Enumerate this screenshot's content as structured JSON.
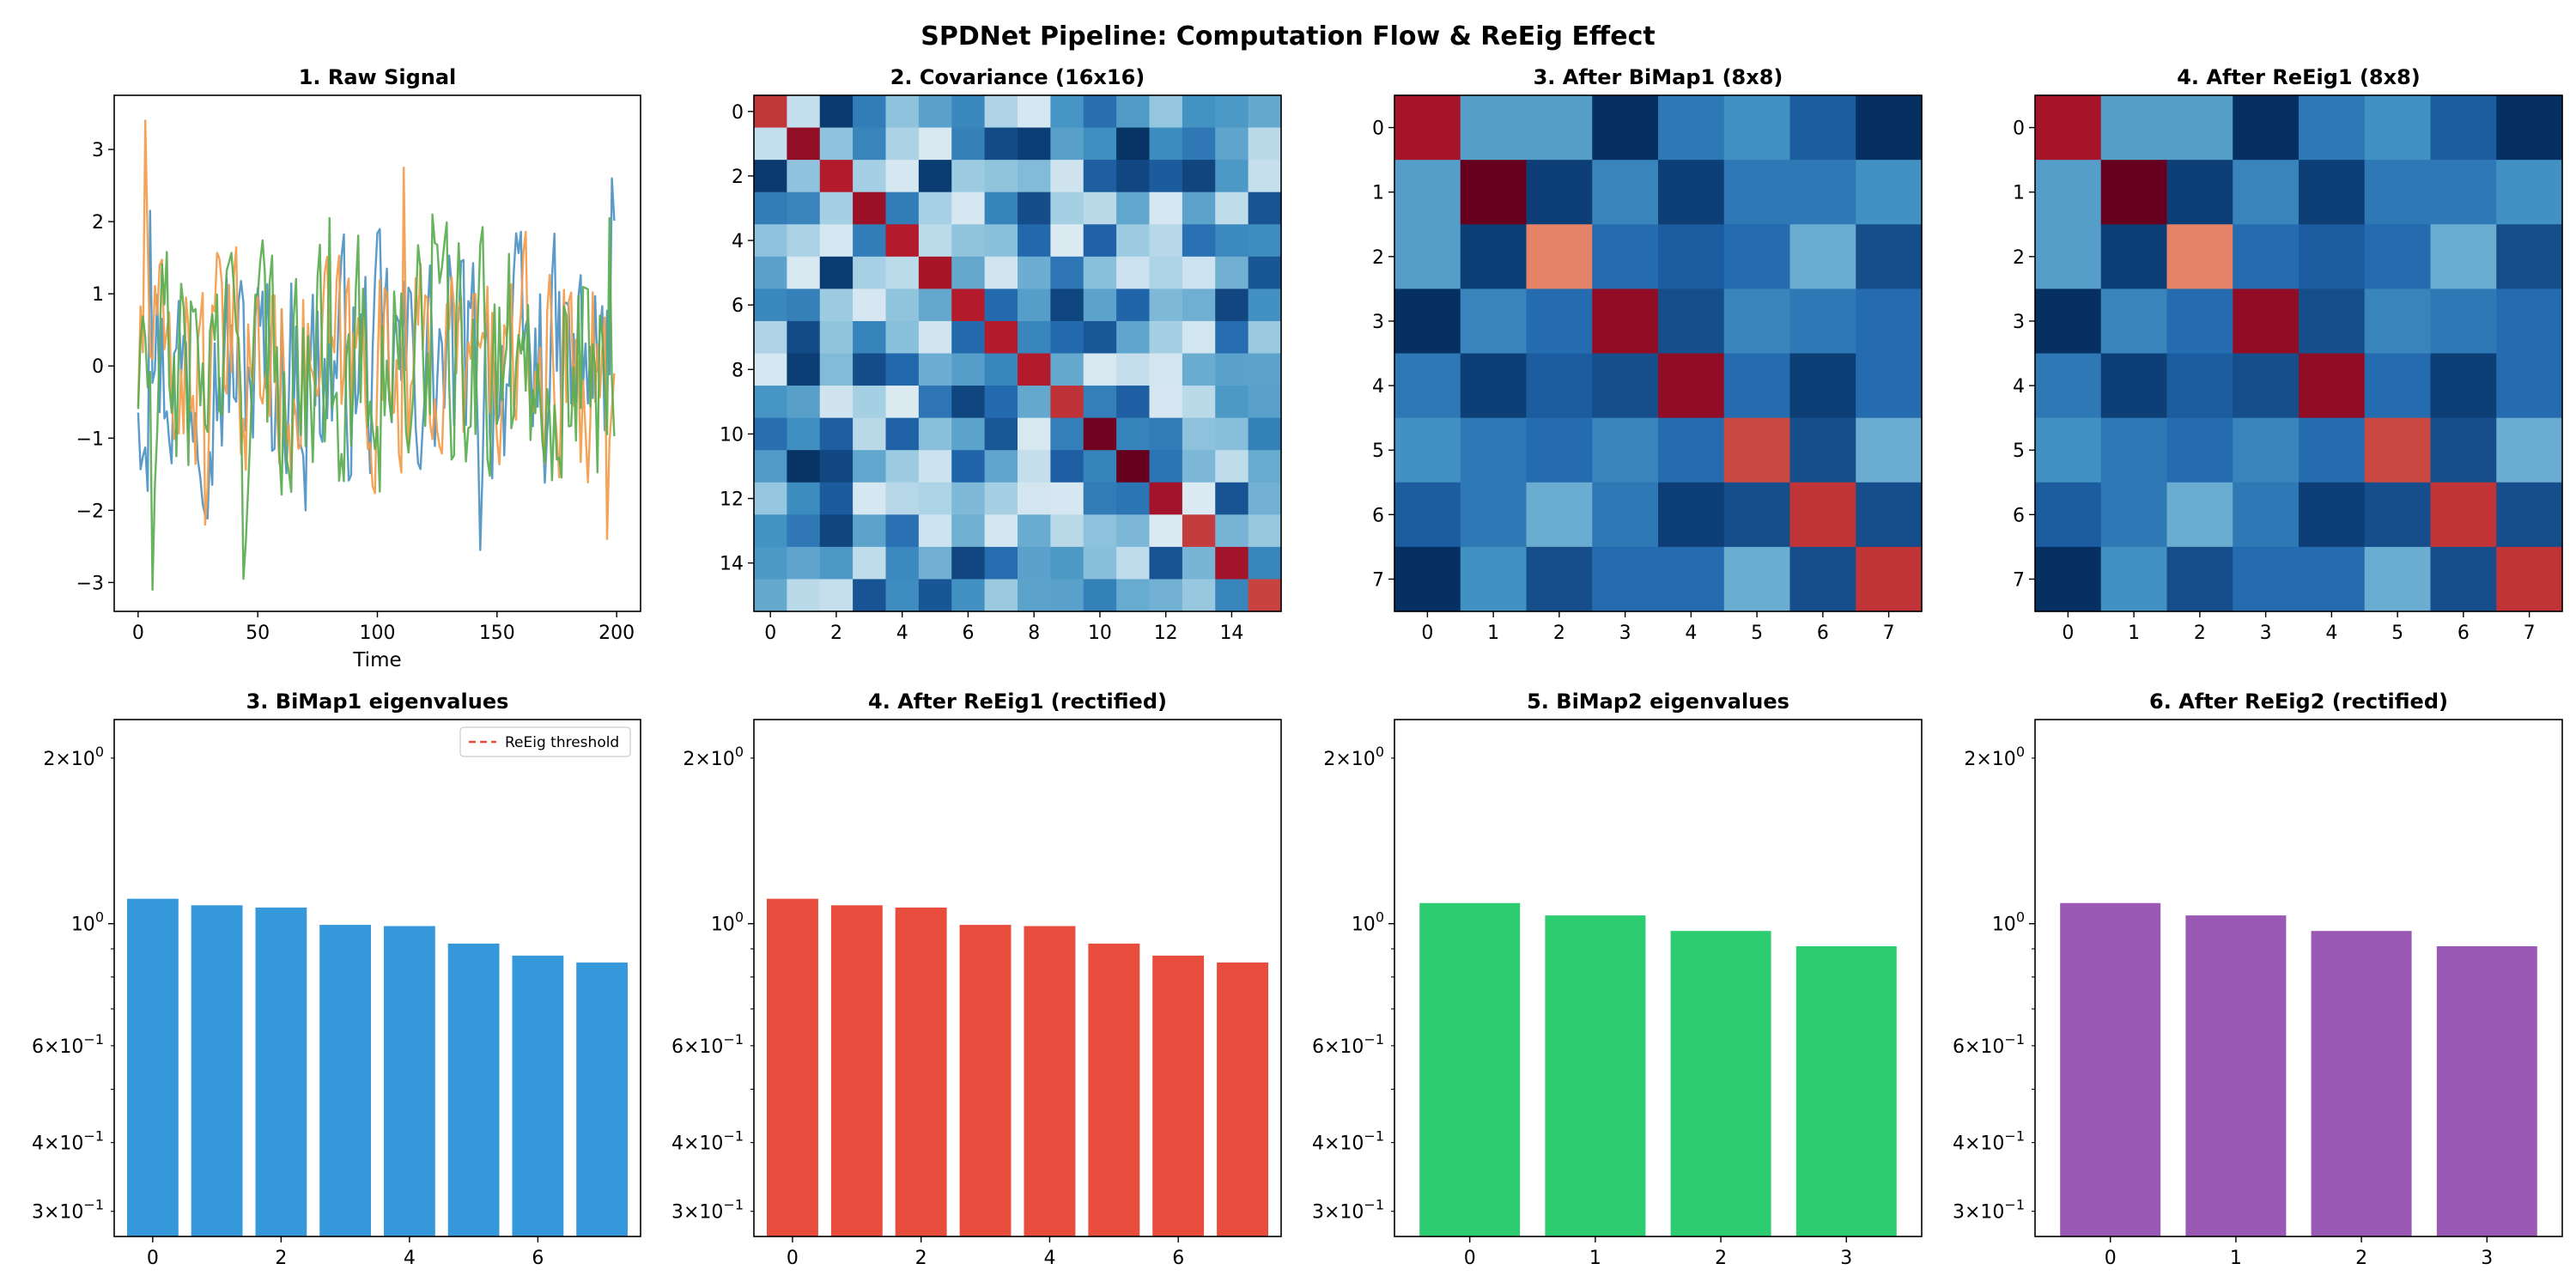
{
  "figure": {
    "title": "SPDNet Pipeline: Computation Flow & ReEig Effect"
  },
  "chart_data": [
    {
      "type": "line",
      "title": "1. Raw Signal",
      "xlabel": "Time",
      "ylabel": "",
      "xlim": [
        -10,
        210
      ],
      "ylim": [
        -3.4,
        3.75
      ],
      "xticks": [
        0,
        50,
        100,
        150,
        200
      ],
      "yticks": [
        -3,
        -2,
        -1,
        0,
        1,
        2,
        3
      ],
      "x_length": 200,
      "series": [
        {
          "color": "#4c92c3",
          "amplitude": 0.92,
          "extremes": [
            [
              5,
              2.15
            ],
            [
              70,
              -2.0
            ],
            [
              143,
              -2.55
            ],
            [
              198,
              2.6
            ]
          ]
        },
        {
          "color": "#f39c4b",
          "amplitude": 0.85,
          "extremes": [
            [
              3,
              3.4
            ],
            [
              28,
              -2.2
            ],
            [
              111,
              2.75
            ],
            [
              196,
              -2.4
            ]
          ]
        },
        {
          "color": "#5aad50",
          "amplitude": 0.95,
          "extremes": [
            [
              6,
              -3.1
            ],
            [
              44,
              -2.95
            ],
            [
              80,
              2.05
            ],
            [
              123,
              2.1
            ],
            [
              197,
              2.05
            ]
          ]
        }
      ]
    },
    {
      "type": "heatmap",
      "title": "2. Covariance (16x16)",
      "colormap": "RdBu_r",
      "vmin": -0.45,
      "vmax": 1.3,
      "ticks": [
        0,
        2,
        4,
        6,
        8,
        10,
        12,
        14
      ],
      "size": 16,
      "diagonal": [
        1.05,
        1.2,
        1.12,
        1.18,
        1.12,
        1.15,
        1.12,
        1.12,
        1.12,
        1.06,
        1.28,
        1.3,
        1.16,
        1.04,
        1.16,
        1.02
      ],
      "off_diagonal_range": [
        -0.45,
        0.3
      ]
    },
    {
      "type": "heatmap",
      "title": "3. After BiMap1 (8x8)",
      "colormap": "RdBu_r",
      "ticks": [
        0,
        1,
        2,
        3,
        4,
        5,
        6,
        7
      ],
      "z": [
        [
          1.15,
          -0.1,
          -0.1,
          -0.5,
          -0.25,
          -0.15,
          -0.35,
          -0.5
        ],
        [
          -0.1,
          1.3,
          -0.45,
          -0.2,
          -0.45,
          -0.25,
          -0.25,
          -0.15
        ],
        [
          -0.1,
          -0.45,
          0.85,
          -0.3,
          -0.35,
          -0.3,
          -0.05,
          -0.4
        ],
        [
          -0.5,
          -0.2,
          -0.3,
          1.2,
          -0.4,
          -0.2,
          -0.25,
          -0.3
        ],
        [
          -0.25,
          -0.45,
          -0.35,
          -0.4,
          1.2,
          -0.3,
          -0.45,
          -0.3
        ],
        [
          -0.15,
          -0.25,
          -0.3,
          -0.2,
          -0.3,
          1.0,
          -0.4,
          -0.05
        ],
        [
          -0.35,
          -0.25,
          -0.05,
          -0.25,
          -0.45,
          -0.4,
          1.05,
          -0.4
        ],
        [
          -0.5,
          -0.15,
          -0.4,
          -0.3,
          -0.3,
          -0.05,
          -0.4,
          1.05
        ]
      ],
      "vmin": -0.5,
      "vmax": 1.3
    },
    {
      "type": "heatmap",
      "title": "4. After ReEig1 (8x8)",
      "colormap": "RdBu_r",
      "ticks": [
        0,
        1,
        2,
        3,
        4,
        5,
        6,
        7
      ],
      "z": [
        [
          1.15,
          -0.1,
          -0.1,
          -0.5,
          -0.25,
          -0.15,
          -0.35,
          -0.5
        ],
        [
          -0.1,
          1.3,
          -0.45,
          -0.2,
          -0.45,
          -0.25,
          -0.25,
          -0.15
        ],
        [
          -0.1,
          -0.45,
          0.85,
          -0.3,
          -0.35,
          -0.3,
          -0.05,
          -0.4
        ],
        [
          -0.5,
          -0.2,
          -0.3,
          1.2,
          -0.4,
          -0.2,
          -0.25,
          -0.3
        ],
        [
          -0.25,
          -0.45,
          -0.35,
          -0.4,
          1.2,
          -0.3,
          -0.45,
          -0.3
        ],
        [
          -0.15,
          -0.25,
          -0.3,
          -0.2,
          -0.3,
          1.0,
          -0.4,
          -0.05
        ],
        [
          -0.35,
          -0.25,
          -0.05,
          -0.25,
          -0.45,
          -0.4,
          1.05,
          -0.4
        ],
        [
          -0.5,
          -0.15,
          -0.4,
          -0.3,
          -0.3,
          -0.05,
          -0.4,
          1.05
        ]
      ],
      "vmin": -0.5,
      "vmax": 1.3
    },
    {
      "type": "bar",
      "title": "3. BiMap1 eigenvalues",
      "yscale": "log",
      "ylim": [
        0.27,
        2.35
      ],
      "categories": [
        0,
        1,
        2,
        3,
        4,
        5,
        6,
        7
      ],
      "xticks": [
        0,
        2,
        4,
        6
      ],
      "values": [
        1.11,
        1.08,
        1.07,
        0.995,
        0.99,
        0.92,
        0.875,
        0.85
      ],
      "color": "#3498db",
      "legend": [
        {
          "label": "ReEig threshold",
          "color": "#e74c3c",
          "style": "dashed"
        }
      ],
      "legend_position": "upper right"
    },
    {
      "type": "bar",
      "title": "4. After ReEig1 (rectified)",
      "yscale": "log",
      "ylim": [
        0.27,
        2.35
      ],
      "categories": [
        0,
        1,
        2,
        3,
        4,
        5,
        6,
        7
      ],
      "xticks": [
        0,
        2,
        4,
        6
      ],
      "values": [
        1.11,
        1.08,
        1.07,
        0.995,
        0.99,
        0.92,
        0.875,
        0.85
      ],
      "color": "#e74c3c"
    },
    {
      "type": "bar",
      "title": "5. BiMap2 eigenvalues",
      "yscale": "log",
      "ylim": [
        0.27,
        2.35
      ],
      "categories": [
        0,
        1,
        2,
        3
      ],
      "xticks": [
        0,
        1,
        2,
        3
      ],
      "values": [
        1.09,
        1.035,
        0.97,
        0.91
      ],
      "color": "#2ecc71"
    },
    {
      "type": "bar",
      "title": "6. After ReEig2 (rectified)",
      "yscale": "log",
      "ylim": [
        0.27,
        2.35
      ],
      "categories": [
        0,
        1,
        2,
        3
      ],
      "xticks": [
        0,
        1,
        2,
        3
      ],
      "values": [
        1.09,
        1.035,
        0.97,
        0.91
      ],
      "color": "#9b59b6"
    }
  ],
  "log_axis_labels": {
    "two": {
      "base": "2",
      "exp": "0"
    },
    "one": {
      "base": "10",
      "exp": "0"
    },
    "six": {
      "base": "6",
      "exp": "−1"
    },
    "four": {
      "base": "4",
      "exp": "−1"
    },
    "three": {
      "base": "3",
      "exp": "−1"
    }
  }
}
